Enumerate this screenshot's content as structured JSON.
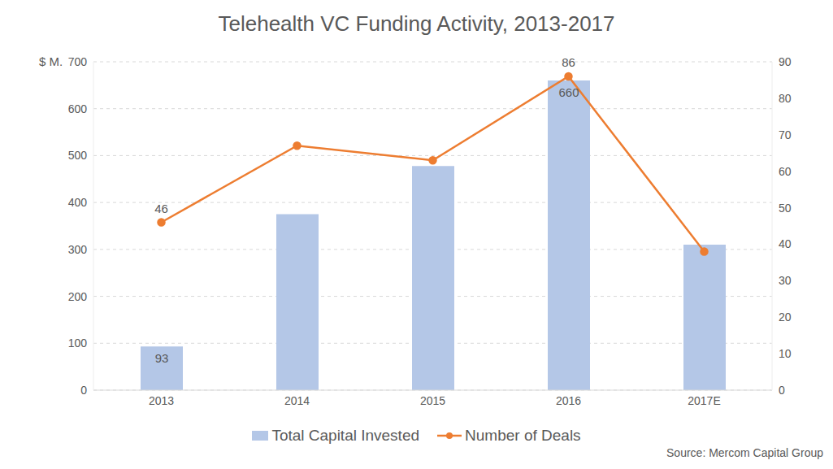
{
  "chart_data": {
    "type": "combo",
    "title": "Telehealth VC Funding Activity, 2013-2017",
    "y_label": "$ M.",
    "annotation": "Source: Mercom Capital Group",
    "categories": [
      "2013",
      "2014",
      "2015",
      "2016",
      "2017E"
    ],
    "series": [
      {
        "name": "Total Capital Invested",
        "type": "bar",
        "color": "#b4c7e7",
        "values": [
          93,
          375,
          478,
          660,
          310
        ],
        "data_labels": true,
        "value_labels": [
          "93",
          null,
          null,
          "660",
          null
        ]
      },
      {
        "name": "Number of Deals",
        "type": "line",
        "axis": "y2",
        "color": "#ed7d31",
        "marker": "circle",
        "values": [
          46,
          67,
          63,
          86,
          38
        ],
        "data_labels": true,
        "value_labels": [
          "46",
          null,
          null,
          "86",
          null
        ]
      }
    ],
    "ylim": [
      0,
      700
    ],
    "yticks": [
      0,
      100,
      200,
      300,
      400,
      500,
      600,
      700
    ],
    "y2lim": [
      0,
      90
    ],
    "y2ticks": [
      0,
      10,
      20,
      30,
      40,
      50,
      60,
      70,
      80,
      90
    ],
    "grid": true,
    "legend": "bottom"
  }
}
